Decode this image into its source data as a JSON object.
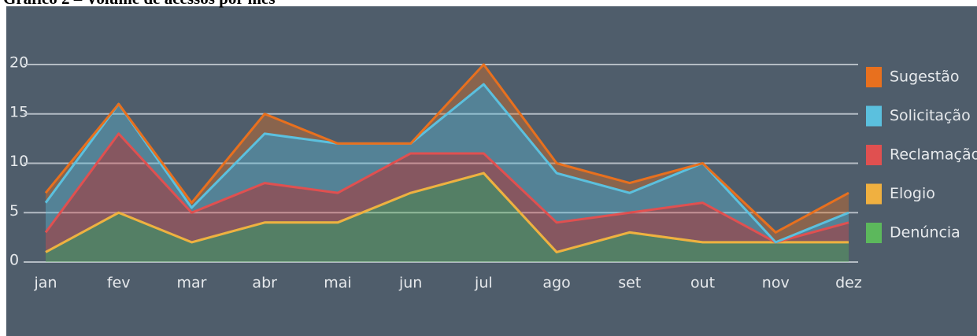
{
  "chart_data": {
    "type": "stacked_area",
    "title": "Gráfico 2 – Volume de acessos por mês",
    "categories": [
      "jan",
      "fev",
      "mar",
      "abr",
      "mai",
      "jun",
      "jul",
      "ago",
      "set",
      "out",
      "nov",
      "dez"
    ],
    "series": [
      {
        "name": "Denúncia",
        "color": "#5cb85c",
        "values": [
          1,
          5,
          2,
          4,
          4,
          7,
          9,
          1,
          3,
          2,
          2,
          2
        ]
      },
      {
        "name": "Elogio",
        "color": "#f0b040",
        "values": [
          0,
          0,
          0,
          0,
          0,
          0,
          0,
          0,
          0,
          0,
          0,
          0
        ]
      },
      {
        "name": "Reclamação",
        "color": "#e05050",
        "values": [
          2,
          8,
          3,
          4,
          3,
          4,
          2,
          3,
          2,
          4,
          0,
          2
        ]
      },
      {
        "name": "Solicitação",
        "color": "#5bc0de",
        "values": [
          3,
          3,
          0.5,
          5,
          5,
          1,
          7,
          5,
          2,
          4,
          0,
          1
        ]
      },
      {
        "name": "Sugestão",
        "color": "#e8701e",
        "values": [
          1,
          0,
          0.5,
          2,
          0,
          0,
          2,
          1,
          1,
          0,
          1,
          2
        ]
      }
    ],
    "ylim": [
      0,
      20
    ],
    "yticks": [
      0,
      5,
      10,
      15,
      20
    ],
    "grid": true,
    "legend": "right"
  }
}
